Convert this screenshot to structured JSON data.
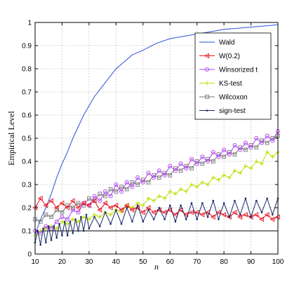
{
  "chart_data": {
    "type": "line",
    "title": "",
    "xlabel": "n",
    "ylabel": "Empirical Level",
    "xlim": [
      10,
      100
    ],
    "ylim": [
      0,
      1
    ],
    "xticks": [
      10,
      20,
      30,
      40,
      50,
      60,
      70,
      80,
      90,
      100
    ],
    "xtick_labels": [
      "10",
      "20",
      "30",
      "40",
      "50",
      "60",
      "70",
      "80",
      "90",
      "100"
    ],
    "yticks": [
      0,
      0.1,
      0.2,
      0.3,
      0.4,
      0.5,
      0.6,
      0.7,
      0.8,
      0.9,
      1
    ],
    "ytick_labels": [
      "0",
      "0.1",
      "0.2",
      "0.3",
      "0.4",
      "0.5",
      "0.6",
      "0.7",
      "0.8",
      "0.9",
      "1"
    ],
    "grid": true,
    "legend_position": "top-right",
    "reference_line": {
      "y": 0.1,
      "color": "#000000"
    },
    "series": [
      {
        "name": "Wald",
        "color": "#2b4fe0",
        "marker": "none",
        "x": [
          10,
          12,
          14,
          16,
          18,
          20,
          22,
          24,
          26,
          28,
          30,
          32,
          34,
          36,
          38,
          40,
          43,
          46,
          50,
          55,
          60,
          65,
          70,
          75,
          80,
          85,
          90,
          95,
          100
        ],
        "values": [
          0.08,
          0.15,
          0.2,
          0.26,
          0.33,
          0.39,
          0.44,
          0.5,
          0.55,
          0.6,
          0.64,
          0.68,
          0.71,
          0.74,
          0.77,
          0.8,
          0.83,
          0.86,
          0.88,
          0.91,
          0.93,
          0.94,
          0.95,
          0.96,
          0.97,
          0.975,
          0.98,
          0.985,
          0.99
        ]
      },
      {
        "name": "W(0.2)",
        "color": "#e8141e",
        "marker": "triangle-left",
        "x": [
          10,
          12,
          14,
          16,
          18,
          20,
          22,
          24,
          26,
          28,
          30,
          32,
          34,
          36,
          38,
          40,
          42,
          44,
          46,
          48,
          50,
          52,
          54,
          56,
          58,
          60,
          62,
          64,
          66,
          68,
          70,
          72,
          74,
          76,
          78,
          80,
          82,
          84,
          86,
          88,
          90,
          92,
          94,
          96,
          98,
          100
        ],
        "values": [
          0.2,
          0.24,
          0.21,
          0.23,
          0.2,
          0.22,
          0.2,
          0.23,
          0.2,
          0.22,
          0.21,
          0.23,
          0.19,
          0.22,
          0.2,
          0.21,
          0.19,
          0.21,
          0.19,
          0.2,
          0.18,
          0.2,
          0.18,
          0.19,
          0.18,
          0.19,
          0.17,
          0.19,
          0.17,
          0.18,
          0.18,
          0.17,
          0.18,
          0.16,
          0.18,
          0.17,
          0.16,
          0.18,
          0.16,
          0.17,
          0.16,
          0.17,
          0.15,
          0.17,
          0.15,
          0.16
        ]
      },
      {
        "name": "Winsorized t",
        "color": "#b040f0",
        "marker": "circle",
        "x": [
          10,
          12,
          14,
          16,
          18,
          20,
          22,
          24,
          26,
          28,
          30,
          32,
          34,
          36,
          38,
          40,
          42,
          44,
          46,
          48,
          50,
          52,
          54,
          56,
          58,
          60,
          62,
          64,
          66,
          68,
          70,
          72,
          74,
          76,
          78,
          80,
          82,
          84,
          86,
          88,
          90,
          92,
          94,
          96,
          98,
          100
        ],
        "values": [
          0.1,
          0.09,
          0.12,
          0.11,
          0.14,
          0.16,
          0.15,
          0.19,
          0.18,
          0.22,
          0.21,
          0.25,
          0.23,
          0.27,
          0.25,
          0.3,
          0.27,
          0.31,
          0.29,
          0.33,
          0.31,
          0.35,
          0.33,
          0.36,
          0.34,
          0.38,
          0.36,
          0.39,
          0.37,
          0.41,
          0.39,
          0.42,
          0.4,
          0.44,
          0.42,
          0.45,
          0.43,
          0.47,
          0.45,
          0.48,
          0.46,
          0.5,
          0.48,
          0.51,
          0.49,
          0.53
        ]
      },
      {
        "name": "KS-test",
        "color": "#b8e000",
        "marker": "plus",
        "x": [
          10,
          12,
          14,
          16,
          18,
          20,
          22,
          24,
          26,
          28,
          30,
          32,
          34,
          36,
          38,
          40,
          42,
          44,
          46,
          48,
          50,
          52,
          54,
          56,
          58,
          60,
          62,
          64,
          66,
          68,
          70,
          72,
          74,
          76,
          78,
          80,
          82,
          84,
          86,
          88,
          90,
          92,
          94,
          96,
          98,
          100
        ],
        "values": [
          0.08,
          0.1,
          0.11,
          0.12,
          0.11,
          0.14,
          0.13,
          0.15,
          0.14,
          0.16,
          0.15,
          0.17,
          0.16,
          0.18,
          0.17,
          0.19,
          0.18,
          0.21,
          0.2,
          0.22,
          0.21,
          0.24,
          0.23,
          0.25,
          0.24,
          0.27,
          0.26,
          0.28,
          0.27,
          0.3,
          0.29,
          0.31,
          0.3,
          0.33,
          0.32,
          0.34,
          0.33,
          0.36,
          0.35,
          0.38,
          0.37,
          0.4,
          0.39,
          0.44,
          0.42,
          0.44
        ]
      },
      {
        "name": "Wilcoxon",
        "color": "#777777",
        "marker": "square",
        "x": [
          10,
          12,
          14,
          16,
          18,
          20,
          22,
          24,
          26,
          28,
          30,
          32,
          34,
          36,
          38,
          40,
          42,
          44,
          46,
          48,
          50,
          52,
          54,
          56,
          58,
          60,
          62,
          64,
          66,
          68,
          70,
          72,
          74,
          76,
          78,
          80,
          82,
          84,
          86,
          88,
          90,
          92,
          94,
          96,
          98,
          100
        ],
        "values": [
          0.15,
          0.14,
          0.17,
          0.16,
          0.19,
          0.18,
          0.21,
          0.2,
          0.22,
          0.21,
          0.24,
          0.23,
          0.26,
          0.25,
          0.28,
          0.27,
          0.29,
          0.28,
          0.31,
          0.3,
          0.32,
          0.31,
          0.34,
          0.33,
          0.35,
          0.34,
          0.37,
          0.36,
          0.38,
          0.37,
          0.4,
          0.39,
          0.41,
          0.4,
          0.43,
          0.42,
          0.44,
          0.43,
          0.46,
          0.45,
          0.47,
          0.46,
          0.49,
          0.48,
          0.5,
          0.51
        ]
      },
      {
        "name": "sign-test",
        "color": "#1a2a6a",
        "marker": "dot",
        "x": [
          10,
          11,
          12,
          13,
          14,
          15,
          16,
          17,
          18,
          19,
          20,
          21,
          22,
          23,
          24,
          25,
          26,
          27,
          28,
          29,
          30,
          32,
          34,
          36,
          38,
          40,
          42,
          44,
          46,
          48,
          50,
          52,
          54,
          56,
          58,
          60,
          62,
          64,
          66,
          68,
          70,
          72,
          74,
          76,
          78,
          80,
          82,
          84,
          86,
          88,
          90,
          92,
          94,
          96,
          98,
          100
        ],
        "values": [
          0.05,
          0.1,
          0.04,
          0.11,
          0.05,
          0.12,
          0.06,
          0.12,
          0.07,
          0.13,
          0.08,
          0.14,
          0.08,
          0.14,
          0.09,
          0.15,
          0.1,
          0.16,
          0.1,
          0.17,
          0.11,
          0.16,
          0.12,
          0.18,
          0.13,
          0.19,
          0.13,
          0.2,
          0.14,
          0.21,
          0.14,
          0.19,
          0.15,
          0.2,
          0.15,
          0.21,
          0.14,
          0.21,
          0.15,
          0.22,
          0.15,
          0.22,
          0.16,
          0.23,
          0.15,
          0.22,
          0.16,
          0.23,
          0.17,
          0.24,
          0.16,
          0.23,
          0.18,
          0.24,
          0.17,
          0.24
        ]
      }
    ]
  }
}
